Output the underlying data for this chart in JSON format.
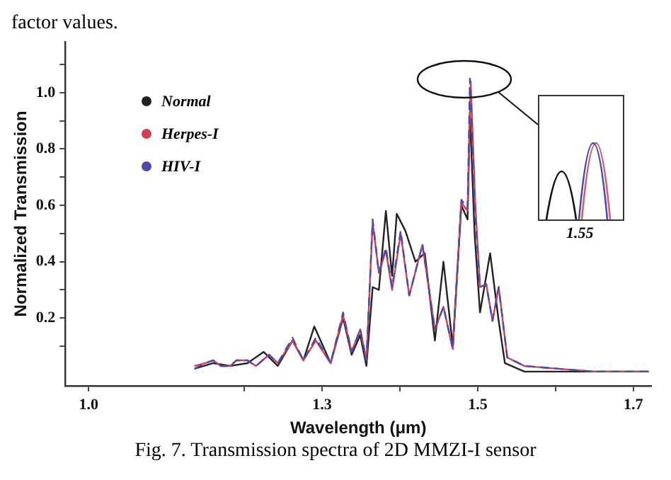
{
  "chart_data": {
    "type": "line",
    "xlabel": "Wavelength (μm)",
    "ylabel": "Normalized Transmission",
    "annotations": [
      "factor values.",
      "1.55",
      "Fig. 7. Transmission spectra of 2D MMZI-I sensor"
    ],
    "xlim": [
      0.97,
      1.723
    ],
    "xticks": [
      {
        "value": 1,
        "label": "1.0"
      },
      {
        "value": 1.2,
        "label": null
      },
      1.3,
      {
        "value": 1.4,
        "label": null
      },
      1.5,
      {
        "value": 1.6,
        "label": null
      },
      1.7
    ],
    "ylim": [
      -0.04,
      1.18
    ],
    "yticks": [
      {
        "value": 0.1,
        "label": null
      },
      0.2,
      {
        "value": 0.3,
        "label": null
      },
      0.4,
      {
        "value": 0.5,
        "label": null
      },
      0.6,
      {
        "value": 0.7,
        "label": null
      },
      0.8,
      {
        "value": 0.9,
        "label": null
      },
      {
        "value": 1,
        "label": "1.0"
      },
      {
        "value": 1.1,
        "label": null
      }
    ],
    "grid": false,
    "legend": "top left",
    "marker": "none",
    "line_style": "solid",
    "series": [
      {
        "name": "Normal",
        "color": "#222222",
        "x": [
          1.136,
          1.16,
          1.182,
          1.204,
          1.225,
          1.243,
          1.262,
          1.276,
          1.29,
          1.311,
          1.327,
          1.338,
          1.349,
          1.357,
          1.365,
          1.373,
          1.382,
          1.39,
          1.396,
          1.407,
          1.42,
          1.432,
          1.445,
          1.456,
          1.468,
          1.479,
          1.487,
          1.49,
          1.496,
          1.503,
          1.516,
          1.527,
          1.535,
          1.56,
          1.72
        ],
        "values": [
          0.02,
          0.04,
          0.03,
          0.04,
          0.08,
          0.03,
          0.12,
          0.05,
          0.17,
          0.04,
          0.2,
          0.07,
          0.14,
          0.03,
          0.31,
          0.3,
          0.58,
          0.35,
          0.57,
          0.51,
          0.4,
          0.43,
          0.12,
          0.4,
          0.1,
          0.6,
          0.55,
          0.93,
          0.5,
          0.22,
          0.43,
          0.19,
          0.04,
          0.01,
          0.01
        ]
      },
      {
        "name": "Herpes-I",
        "color": "#d04050",
        "x": [
          1.136,
          1.15,
          1.16,
          1.17,
          1.182,
          1.19,
          1.204,
          1.215,
          1.232,
          1.243,
          1.262,
          1.276,
          1.292,
          1.311,
          1.327,
          1.338,
          1.349,
          1.357,
          1.365,
          1.373,
          1.382,
          1.39,
          1.401,
          1.412,
          1.429,
          1.445,
          1.456,
          1.468,
          1.479,
          1.487,
          1.491,
          1.497,
          1.503,
          1.511,
          1.519,
          1.527,
          1.538,
          1.56,
          1.604,
          1.65,
          1.72
        ],
        "values": [
          0.03,
          0.04,
          0.05,
          0.03,
          0.03,
          0.05,
          0.05,
          0.03,
          0.07,
          0.04,
          0.12,
          0.05,
          0.12,
          0.04,
          0.21,
          0.08,
          0.16,
          0.05,
          0.54,
          0.36,
          0.44,
          0.3,
          0.5,
          0.28,
          0.46,
          0.16,
          0.24,
          0.09,
          0.61,
          0.58,
          1.04,
          0.6,
          0.31,
          0.32,
          0.19,
          0.31,
          0.06,
          0.03,
          0.02,
          0.01,
          0.01
        ]
      },
      {
        "name": "HIV-I",
        "color": "#4a4ab0",
        "line_style": "dashed",
        "x": [
          1.136,
          1.15,
          1.16,
          1.17,
          1.182,
          1.19,
          1.204,
          1.215,
          1.232,
          1.243,
          1.262,
          1.276,
          1.292,
          1.311,
          1.327,
          1.338,
          1.349,
          1.357,
          1.365,
          1.373,
          1.382,
          1.39,
          1.401,
          1.412,
          1.429,
          1.445,
          1.456,
          1.468,
          1.479,
          1.487,
          1.49,
          1.496,
          1.503,
          1.511,
          1.519,
          1.527,
          1.538,
          1.56,
          1.604,
          1.65,
          1.72
        ],
        "values": [
          0.02,
          0.04,
          0.05,
          0.03,
          0.03,
          0.05,
          0.05,
          0.03,
          0.07,
          0.04,
          0.13,
          0.05,
          0.13,
          0.04,
          0.22,
          0.08,
          0.16,
          0.05,
          0.55,
          0.36,
          0.45,
          0.31,
          0.51,
          0.28,
          0.46,
          0.16,
          0.24,
          0.09,
          0.62,
          0.59,
          1.05,
          0.6,
          0.31,
          0.32,
          0.19,
          0.31,
          0.06,
          0.03,
          0.02,
          0.01,
          0.01
        ]
      }
    ]
  }
}
